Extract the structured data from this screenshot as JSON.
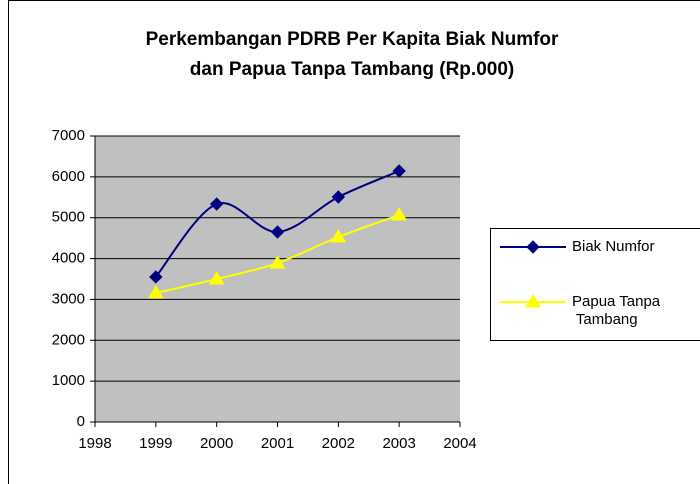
{
  "chart_data": {
    "type": "line",
    "title": [
      "Perkembangan PDRB Per Kapita Biak Numfor",
      "dan Papua Tanpa Tambang (Rp.000)"
    ],
    "x": [
      1999,
      2000,
      2001,
      2002,
      2003
    ],
    "series": [
      {
        "name": "Biak Numfor",
        "color": "#000080",
        "marker": "diamond",
        "values": [
          3550,
          5335,
          4650,
          5507,
          6143
        ]
      },
      {
        "name": "Papua Tanpa Tambang",
        "color": "#ffff00",
        "marker": "triangle",
        "values": [
          3157,
          3500,
          3890,
          4528,
          5066
        ]
      }
    ],
    "xlim": [
      1998,
      2004
    ],
    "xticks": [
      1998,
      1999,
      2000,
      2001,
      2002,
      2003,
      2004
    ],
    "ylim": [
      0,
      7000
    ],
    "yticks": [
      0,
      1000,
      2000,
      3000,
      4000,
      5000,
      6000,
      7000
    ],
    "grid": true,
    "smooth": true,
    "legend": "right",
    "plot_background": "#c0c0c0"
  }
}
